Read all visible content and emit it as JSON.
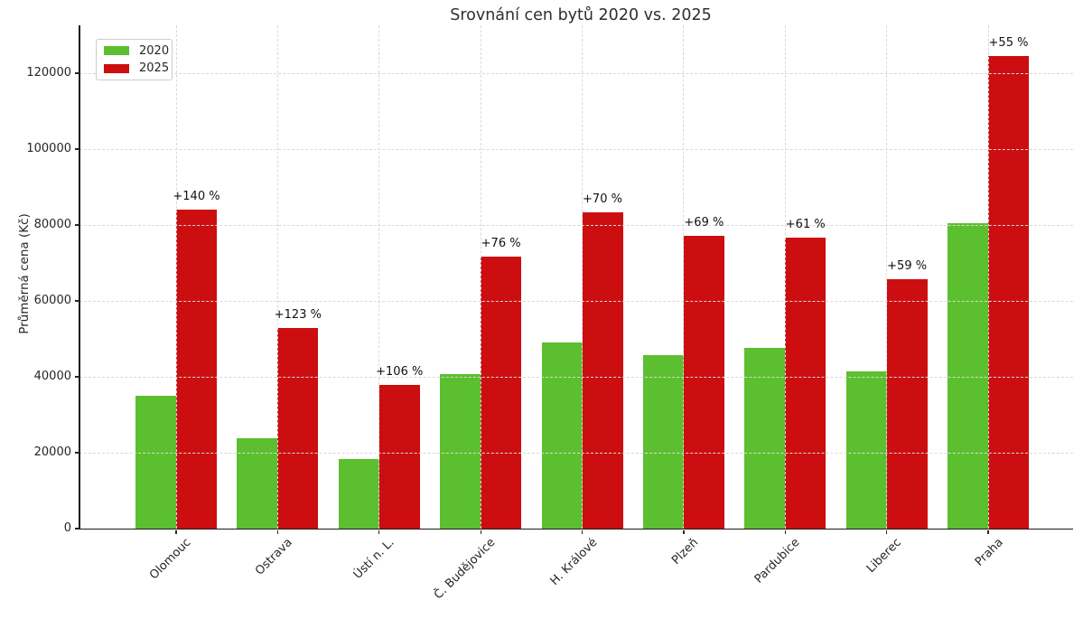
{
  "chart_data": {
    "type": "bar",
    "title": "Srovnání cen bytů 2020 vs. 2025",
    "ylabel": "Průměrná cena (Kč)",
    "xlabel": "",
    "categories": [
      "Olomouc",
      "Ostrava",
      "Ústí n. L.",
      "Č. Budějovice",
      "H. Králové",
      "Plzeň",
      "Pardubice",
      "Liberec",
      "Praha"
    ],
    "series": [
      {
        "name": "2020",
        "color": "#5CBF30",
        "values": [
          35000,
          23700,
          18400,
          40700,
          49000,
          45700,
          47600,
          41400,
          80400
        ]
      },
      {
        "name": "2025",
        "color": "#CC0E10",
        "values": [
          84000,
          52900,
          37900,
          71600,
          83300,
          77100,
          76700,
          65800,
          124500
        ]
      }
    ],
    "pct_labels": [
      "+140 %",
      "+123 %",
      "+106 %",
      "+76 %",
      "+70 %",
      "+69 %",
      "+61 %",
      "+59 %",
      "+55 %"
    ],
    "yticks": [
      0,
      20000,
      40000,
      60000,
      80000,
      100000,
      120000
    ],
    "ylim": [
      0,
      132500
    ],
    "grid": true,
    "grid_style": "dashed",
    "legend_position": "upper left",
    "colors": {
      "grid": "#d9d9d9",
      "axis": "#1a1a1a",
      "text": "#262626"
    }
  }
}
